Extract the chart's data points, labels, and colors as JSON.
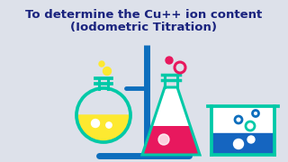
{
  "bg_color": "#dde1ea",
  "title_line1": "To determine the Cu++ ion content",
  "title_line2": "(Iodometric Titration)",
  "title_color": "#1a237e",
  "title_fontsize": 9.5,
  "title_fontweight": "bold",
  "teal": "#00c9a7",
  "blue_stand": "#0d6ebd",
  "yellow": "#fde930",
  "pink": "#e8185e",
  "blue_liquid": "#1565c0",
  "white": "#ffffff"
}
